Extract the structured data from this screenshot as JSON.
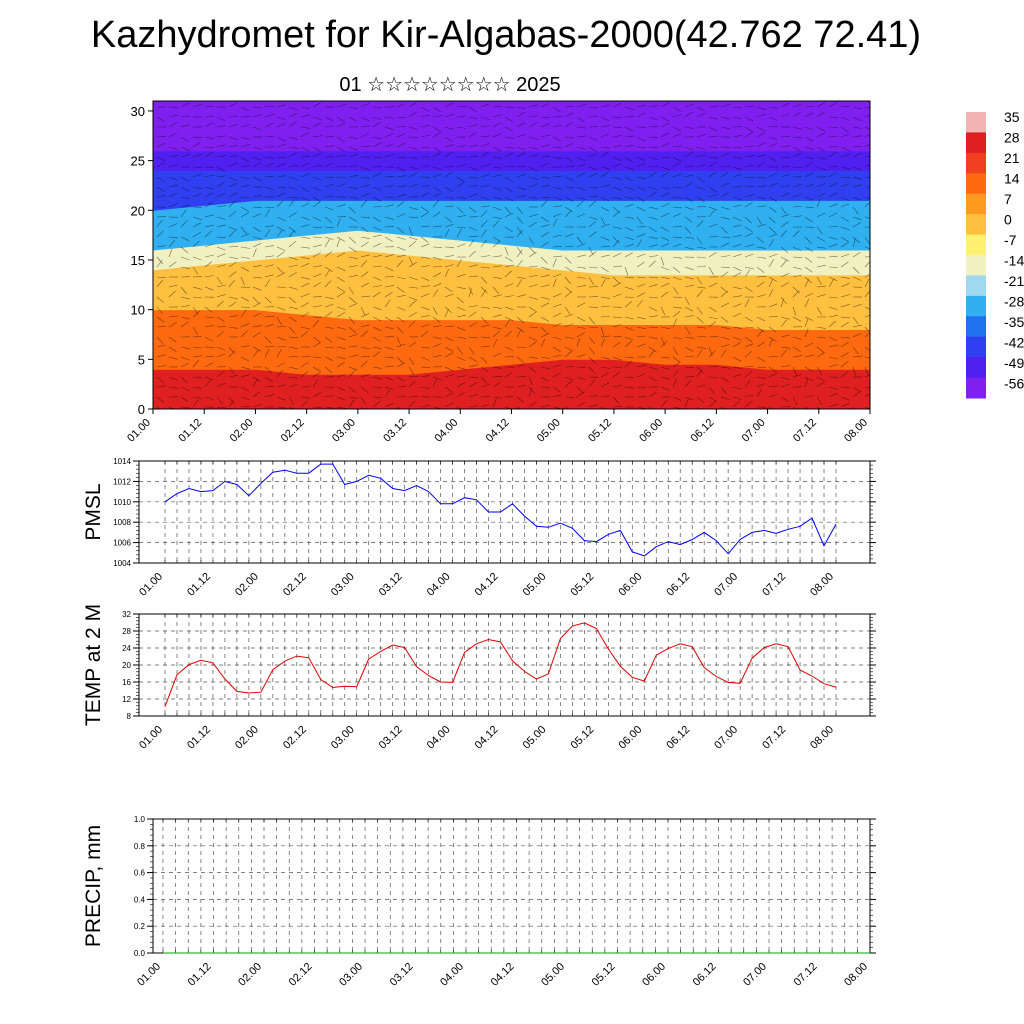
{
  "title": "Kazhydromet for Kir-Algabas-2000(42.762 72.41)",
  "subtitle": "01 ☆☆☆☆☆☆☆☆ 2025",
  "time_labels": [
    "01.00",
    "01.12",
    "02.00",
    "02.12",
    "03.00",
    "03.12",
    "04.00",
    "04.12",
    "05.00",
    "05.12",
    "06.00",
    "06.12",
    "07.00",
    "07.12",
    "08.00"
  ],
  "chart_data": [
    {
      "type": "heatmap",
      "name_hint": "cross-section",
      "ylim": [
        0,
        31
      ],
      "yticks": [
        0,
        5,
        10,
        15,
        20,
        25,
        30
      ],
      "colorbar_labels": [
        "35",
        "28",
        "21",
        "14",
        "7",
        "0",
        "-7",
        "-14",
        "-21",
        "-28",
        "-35",
        "-42",
        "-49",
        "-56"
      ],
      "colors": [
        "#f2b3b3",
        "#e02020",
        "#f04020",
        "#ff6a10",
        "#ff9a20",
        "#ffc040",
        "#fff070",
        "#f0f0c0",
        "#a0d8f0",
        "#30b0f0",
        "#2070f0",
        "#3040f0",
        "#5020f0",
        "#8020f0"
      ],
      "band_boundaries_km": [
        [
          4,
          4,
          4,
          3.5,
          3.5,
          3.5,
          4,
          4.5,
          5,
          5,
          4.5,
          4.5,
          4,
          4,
          4
        ],
        [
          10,
          10,
          10,
          9.5,
          9,
          9,
          9,
          9,
          8.5,
          8.5,
          8.5,
          8.5,
          8,
          8,
          8
        ],
        [
          14,
          14.5,
          15,
          15.5,
          16,
          15.5,
          15,
          14.5,
          14,
          13.5,
          13.5,
          13.5,
          13.5,
          13.5,
          13.5
        ],
        [
          16,
          16.5,
          17,
          17.5,
          18,
          17.5,
          17,
          16.5,
          16,
          16,
          16,
          16,
          16,
          16,
          16
        ],
        [
          20,
          20.5,
          21,
          21,
          21,
          21,
          21,
          21,
          21,
          21,
          21,
          21,
          21,
          21,
          21
        ],
        [
          24,
          24,
          24,
          24,
          24,
          24,
          24,
          24,
          24,
          24,
          24,
          24,
          24,
          24,
          24
        ],
        [
          26,
          26,
          26,
          26,
          26,
          26,
          26,
          26,
          26,
          26,
          26,
          26,
          26,
          26,
          26
        ]
      ]
    },
    {
      "type": "line",
      "ylabel": "PMSL",
      "ylim": [
        1004,
        1014
      ],
      "yticks": [
        1004,
        1006,
        1008,
        1010,
        1012,
        1014
      ],
      "color": "#0000ff",
      "values": [
        1010,
        1010.8,
        1011.3,
        1011,
        1011.1,
        1012,
        1011.7,
        1010.6,
        1011.8,
        1012.9,
        1013.1,
        1012.8,
        1012.8,
        1013.7,
        1013.7,
        1011.7,
        1012,
        1012.6,
        1012.3,
        1011.3,
        1011.1,
        1011.6,
        1011,
        1009.8,
        1009.8,
        1010.4,
        1010.2,
        1009,
        1009,
        1009.8,
        1008.6,
        1007.6,
        1007.5,
        1007.9,
        1007.4,
        1006.2,
        1006.1,
        1006.8,
        1007.2,
        1005.1,
        1004.7,
        1005.6,
        1006.1,
        1005.8,
        1006.3,
        1007,
        1006.2,
        1004.9,
        1006.3,
        1007,
        1007.2,
        1006.9,
        1007.3,
        1007.6,
        1008.4,
        1005.7,
        1007.8
      ]
    },
    {
      "type": "line",
      "ylabel": "TEMP at 2 M",
      "ylim": [
        8,
        32
      ],
      "yticks": [
        8,
        12,
        16,
        20,
        24,
        28,
        32
      ],
      "color": "#e00000",
      "values": [
        10.2,
        17.7,
        20.1,
        21.1,
        20.5,
        16.7,
        13.8,
        13.4,
        13.6,
        18.9,
        20.9,
        22.1,
        21.7,
        16.6,
        14.7,
        15,
        14.9,
        21.4,
        23.2,
        24.7,
        24.1,
        19.6,
        17.5,
        16,
        15.9,
        23,
        25,
        26,
        25.4,
        21,
        18.5,
        16.7,
        17.9,
        26.2,
        29.2,
        29.9,
        28.6,
        23.8,
        19.7,
        17.1,
        16.2,
        22.3,
        23.9,
        25,
        24.3,
        19.4,
        17.3,
        15.9,
        15.7,
        21.6,
        24.1,
        25,
        24.3,
        18.8,
        17.4,
        15.6,
        14.8
      ]
    },
    {
      "type": "line",
      "ylabel": "PRECIP, mm",
      "ylim": [
        0.0,
        1.0
      ],
      "yticks": [
        "0.0",
        "0.2",
        "0.4",
        "0.6",
        "0.8",
        "1.0"
      ],
      "color": "#00aa00",
      "values": [
        0,
        0,
        0,
        0,
        0,
        0,
        0,
        0,
        0,
        0,
        0,
        0,
        0,
        0,
        0,
        0,
        0,
        0,
        0,
        0,
        0,
        0,
        0,
        0,
        0,
        0,
        0,
        0,
        0,
        0,
        0,
        0,
        0,
        0,
        0,
        0,
        0,
        0,
        0,
        0,
        0,
        0,
        0,
        0,
        0,
        0,
        0,
        0,
        0,
        0,
        0,
        0,
        0,
        0,
        0,
        0,
        0
      ]
    }
  ]
}
